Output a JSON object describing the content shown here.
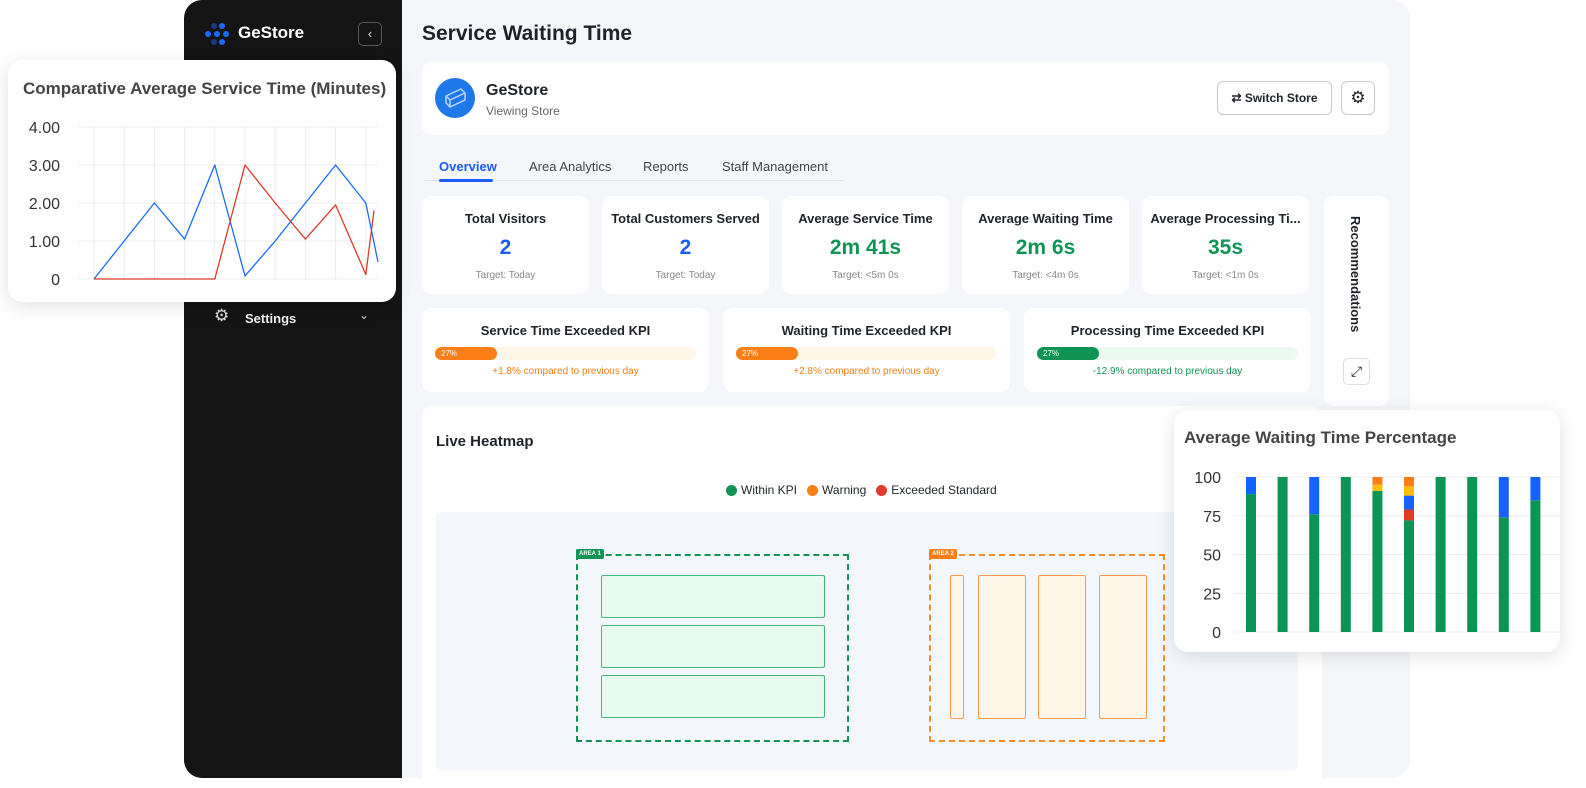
{
  "sidebar": {
    "brand": "GeStore",
    "settings_label": "Settings",
    "collapse_icon": "chevron-left-icon"
  },
  "header": {
    "title": "Service Waiting Time"
  },
  "store": {
    "name": "GeStore",
    "subtitle": "Viewing Store",
    "switch_label": "Switch Store"
  },
  "tabs": [
    {
      "label": "Overview",
      "active": true
    },
    {
      "label": "Area Analytics"
    },
    {
      "label": "Reports"
    },
    {
      "label": "Staff Management"
    }
  ],
  "stats": [
    {
      "title": "Total Visitors",
      "value": "2",
      "target": "Target: Today",
      "color": "#1a5cff"
    },
    {
      "title": "Total Customers Served",
      "value": "2",
      "target": "Target: Today",
      "color": "#1a5cff"
    },
    {
      "title": "Average Service Time",
      "value": "2m 41s",
      "target": "Target: <5m 0s",
      "color": "#0f9455"
    },
    {
      "title": "Average Waiting Time",
      "value": "2m 6s",
      "target": "Target: <4m 0s",
      "color": "#0f9455"
    },
    {
      "title": "Average Processing Ti...",
      "value": "35s",
      "target": "Target: <1m 0s",
      "color": "#0f9455"
    }
  ],
  "kpis": [
    {
      "title": "Service Time Exceeded KPI",
      "percent": 27,
      "label": "27%",
      "change": "+1.8% compared to previous day",
      "color": "#fb7f16",
      "track": "#fff6ea"
    },
    {
      "title": "Waiting Time Exceeded KPI",
      "percent": 27,
      "label": "27%",
      "change": "+2.8% compared to previous day",
      "color": "#fb7f16",
      "track": "#fff6ea"
    },
    {
      "title": "Processing Time Exceeded KPI",
      "percent": 27,
      "label": "27%",
      "change": "-12.9% compared to previous day",
      "color": "#0f9455",
      "track": "#eafaf0"
    }
  ],
  "recommendations": {
    "label": "Recommendations"
  },
  "heatmap": {
    "title": "Live Heatmap",
    "legend": [
      {
        "label": "Within KPI",
        "color": "#0f9455"
      },
      {
        "label": "Warning",
        "color": "#fb7f16"
      },
      {
        "label": "Exceeded Standard",
        "color": "#e03a2b"
      }
    ],
    "area1": "AREA 1",
    "area2": "AREA 2"
  },
  "chart_data": [
    {
      "type": "line",
      "title": "Comparative Average Service Time (Minutes)",
      "ylim": [
        0,
        4
      ],
      "yticks": [
        "0",
        "1.00",
        "2.00",
        "3.00",
        "4.00"
      ],
      "grid": true,
      "series": [
        {
          "color": "#1a6bff",
          "values": [
            0,
            1,
            2,
            1.05,
            3,
            0.08,
            1,
            2,
            3,
            2,
            0.45
          ]
        },
        {
          "color": "#e03a2b",
          "values": [
            0,
            0,
            0,
            0,
            0,
            3,
            2,
            1.05,
            1.95,
            0.12,
            1.8
          ]
        }
      ]
    },
    {
      "type": "bar",
      "stacked": true,
      "title": "Average Waiting Time Percentage",
      "ylim": [
        0,
        100
      ],
      "yticks": [
        "0",
        "25",
        "50",
        "75",
        "100"
      ],
      "grid": true,
      "segment_colors": [
        "#0a9455",
        "#e03a2b",
        "#1463ff",
        "#fbbf0a",
        "#fb7f16"
      ],
      "bars": [
        [
          89,
          0,
          11,
          0,
          0
        ],
        [
          100,
          0,
          0,
          0,
          0
        ],
        [
          76,
          0,
          24,
          0,
          0
        ],
        [
          100,
          0,
          0,
          0,
          0
        ],
        [
          91,
          0,
          0,
          4,
          5
        ],
        [
          72,
          7,
          9,
          6,
          6
        ],
        [
          100,
          0,
          0,
          0,
          0
        ],
        [
          100,
          0,
          0,
          0,
          0
        ],
        [
          74,
          0,
          26,
          0,
          0
        ],
        [
          85,
          0,
          15,
          0,
          0
        ]
      ]
    }
  ]
}
